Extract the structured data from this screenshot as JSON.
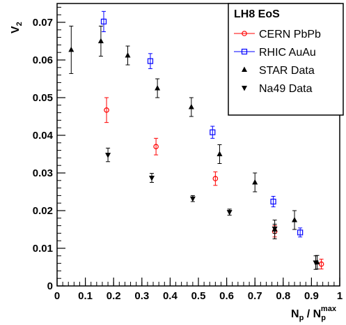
{
  "chart_data": {
    "type": "scatter",
    "xlabel": {
      "base": "N",
      "sub1": "p",
      "mid": " / N",
      "sub2": "p",
      "sup2": "max"
    },
    "ylabel": {
      "base": "V",
      "sub": "2"
    },
    "xlim": [
      0,
      1
    ],
    "ylim": [
      0,
      0.075
    ],
    "x_ticks": [
      0,
      0.1,
      0.2,
      0.3,
      0.4,
      0.5,
      0.6,
      0.7,
      0.8,
      0.9,
      1
    ],
    "x_tick_labels": [
      "0",
      "0.1",
      "0.2",
      "0.3",
      "0.4",
      "0.5",
      "0.6",
      "0.7",
      "0.8",
      "0.9",
      "1"
    ],
    "y_ticks": [
      0,
      0.01,
      0.02,
      0.03,
      0.04,
      0.05,
      0.06,
      0.07
    ],
    "y_tick_labels": [
      "0",
      "0.01",
      "0.02",
      "0.03",
      "0.04",
      "0.05",
      "0.06",
      "0.07"
    ],
    "legend_title": "LH8 EoS",
    "legend_position": "top-right",
    "grid": false,
    "series": [
      {
        "name": "CERN PbPb",
        "marker": "open-circle",
        "color": "#ff0000",
        "points": [
          {
            "x": 0.175,
            "y": 0.0467,
            "err": 0.0033
          },
          {
            "x": 0.35,
            "y": 0.037,
            "err": 0.0022
          },
          {
            "x": 0.56,
            "y": 0.0285,
            "err": 0.0018
          },
          {
            "x": 0.77,
            "y": 0.0145,
            "err": 0.0015
          },
          {
            "x": 0.935,
            "y": 0.0058,
            "err": 0.0013
          }
        ]
      },
      {
        "name": "RHIC AuAu",
        "marker": "open-square",
        "color": "#0000ff",
        "points": [
          {
            "x": 0.165,
            "y": 0.0702,
            "err": 0.0027
          },
          {
            "x": 0.33,
            "y": 0.0597,
            "err": 0.002
          },
          {
            "x": 0.55,
            "y": 0.0408,
            "err": 0.0016
          },
          {
            "x": 0.765,
            "y": 0.0224,
            "err": 0.0014
          },
          {
            "x": 0.86,
            "y": 0.0142,
            "err": 0.0012
          }
        ]
      },
      {
        "name": "STAR Data",
        "marker": "triangle-up",
        "color": "#000000",
        "points": [
          {
            "x": 0.05,
            "y": 0.0627,
            "err": 0.0063
          },
          {
            "x": 0.155,
            "y": 0.065,
            "err": 0.004
          },
          {
            "x": 0.25,
            "y": 0.0612,
            "err": 0.0025
          },
          {
            "x": 0.355,
            "y": 0.0525,
            "err": 0.0025
          },
          {
            "x": 0.475,
            "y": 0.0475,
            "err": 0.0025
          },
          {
            "x": 0.575,
            "y": 0.035,
            "err": 0.0025
          },
          {
            "x": 0.7,
            "y": 0.0275,
            "err": 0.0025
          },
          {
            "x": 0.77,
            "y": 0.015,
            "err": 0.0025
          },
          {
            "x": 0.84,
            "y": 0.0175,
            "err": 0.0025
          },
          {
            "x": 0.92,
            "y": 0.0063,
            "err": 0.0018
          }
        ]
      },
      {
        "name": "Na49 Data",
        "marker": "triangle-down",
        "color": "#000000",
        "points": [
          {
            "x": 0.18,
            "y": 0.0348,
            "err": 0.0018
          },
          {
            "x": 0.335,
            "y": 0.0287,
            "err": 0.0012
          },
          {
            "x": 0.48,
            "y": 0.0232,
            "err": 0.0008
          },
          {
            "x": 0.61,
            "y": 0.0196,
            "err": 0.0008
          },
          {
            "x": 0.77,
            "y": 0.0152,
            "err": 0.0012
          },
          {
            "x": 0.915,
            "y": 0.0062,
            "err": 0.0018
          }
        ]
      }
    ]
  }
}
